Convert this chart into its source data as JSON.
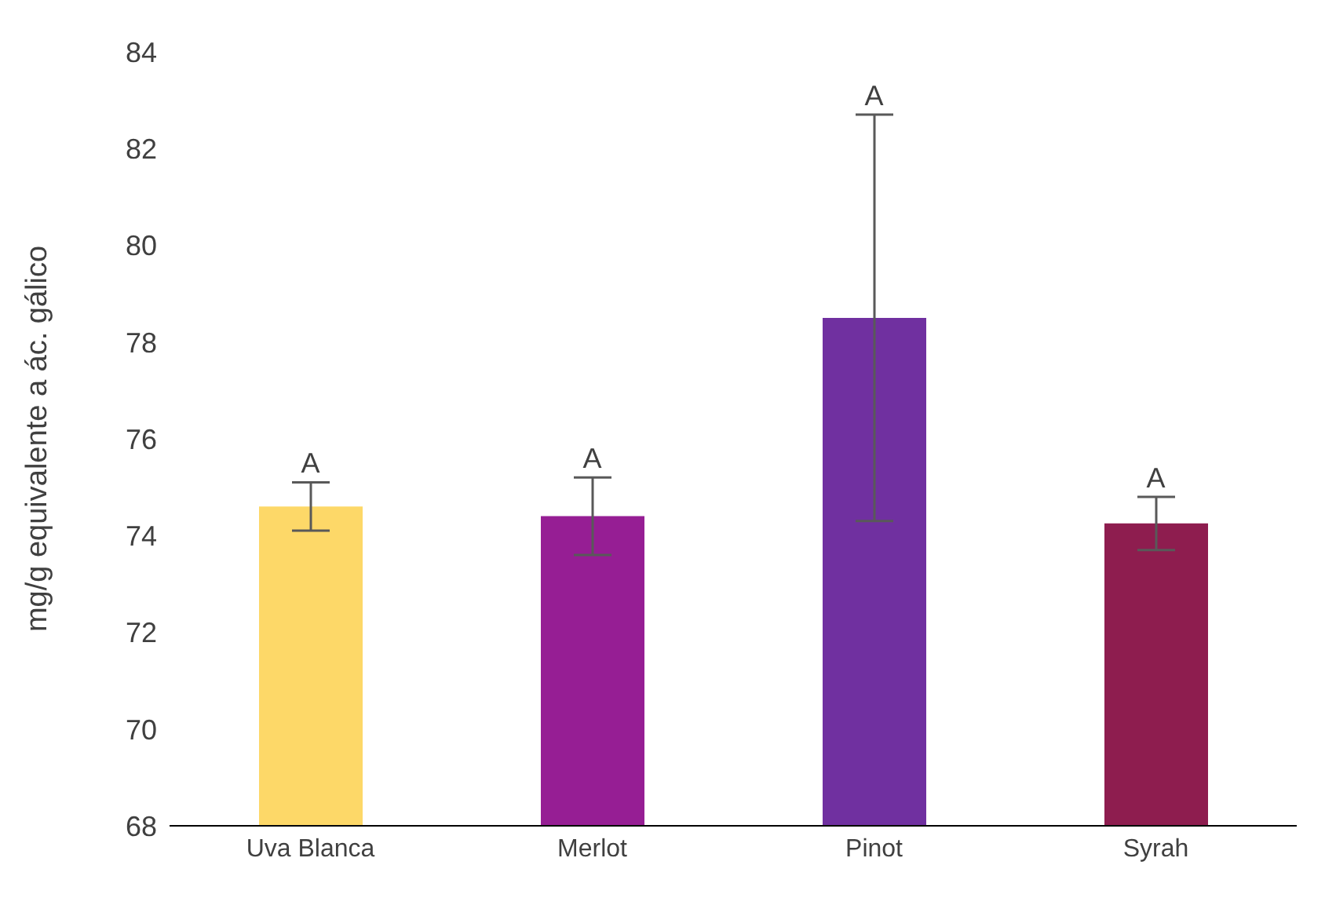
{
  "chart_data": {
    "type": "bar",
    "ylabel": "mg/g equivalente a ác. gálico",
    "categories": [
      "Uva Blanca",
      "Merlot",
      "Pinot",
      "Syrah"
    ],
    "values": [
      74.6,
      74.4,
      78.5,
      74.25
    ],
    "colors": [
      "#fdd868",
      "#961e94",
      "#7030a0",
      "#8e1d4f"
    ],
    "errors": [
      0.5,
      0.8,
      4.2,
      0.55
    ],
    "ylim": [
      68,
      84
    ],
    "yticks": [
      68,
      70,
      72,
      74,
      76,
      78,
      80,
      82,
      84
    ],
    "grid": false,
    "legend": false,
    "annotations": [
      "A",
      "A",
      "A",
      "A"
    ]
  }
}
